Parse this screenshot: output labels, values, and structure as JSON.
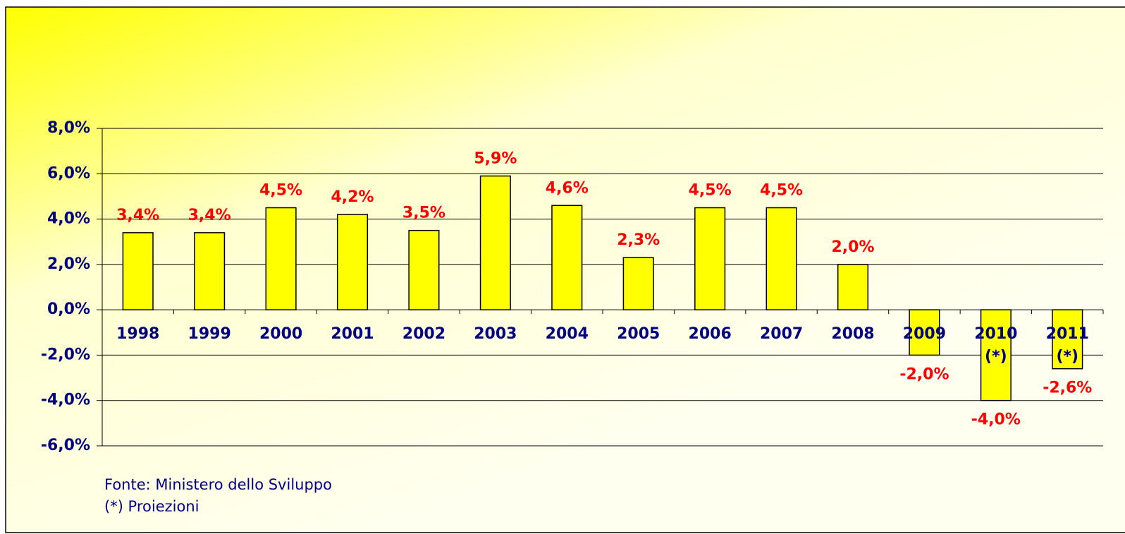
{
  "chart_data": {
    "type": "bar",
    "categories": [
      "1998",
      "1999",
      "2000",
      "2001",
      "2002",
      "2003",
      "2004",
      "2005",
      "2006",
      "2007",
      "2008",
      "2009",
      "2010 (*)",
      "2011 (*)"
    ],
    "values": [
      3.4,
      3.4,
      4.5,
      4.2,
      3.5,
      5.9,
      4.6,
      2.3,
      4.5,
      4.5,
      2.0,
      -2.0,
      -4.0,
      -2.6
    ],
    "value_labels": [
      "3,4%",
      "3,4%",
      "4,5%",
      "4,2%",
      "3,5%",
      "5,9%",
      "4,6%",
      "2,3%",
      "4,5%",
      "4,5%",
      "2,0%",
      "-2,0%",
      "-4,0%",
      "-2,6%"
    ],
    "color": "#ffff00",
    "ylim": [
      -6,
      8
    ],
    "yticks": [
      {
        "value": -6,
        "label": "-6,0%"
      },
      {
        "value": -4,
        "label": "-4,0%"
      },
      {
        "value": -2,
        "label": "-2,0%"
      },
      {
        "value": 0,
        "label": "0,0%"
      },
      {
        "value": 2,
        "label": "2,0%"
      },
      {
        "value": 4,
        "label": "4,0%"
      },
      {
        "value": 6,
        "label": "6,0%"
      },
      {
        "value": 8,
        "label": "8,0%"
      }
    ],
    "grid": true,
    "notes": [
      "Fonte: Ministero dello Sviluppo",
      "(*) Proiezioni"
    ]
  }
}
